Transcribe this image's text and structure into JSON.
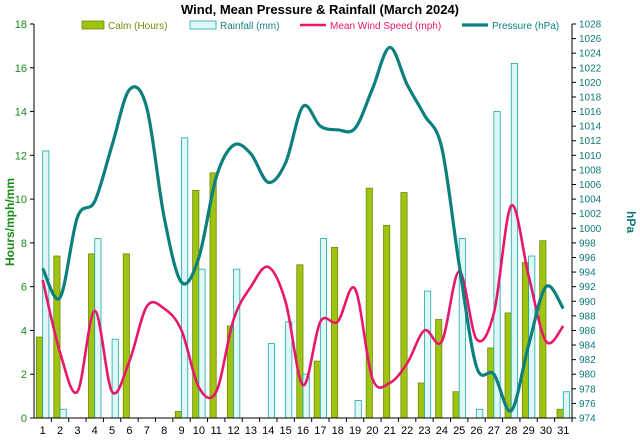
{
  "chart_data": {
    "type": "bar",
    "title": "Wind, Mean Pressure & Rainfall (March 2024)",
    "ylabel": "Hours/mph/mm",
    "y2label": "hPa",
    "ylim": [
      0,
      18
    ],
    "y2lim": [
      974,
      1028
    ],
    "categories": [
      "1",
      "2",
      "3",
      "4",
      "5",
      "6",
      "7",
      "8",
      "9",
      "10",
      "11",
      "12",
      "13",
      "14",
      "15",
      "16",
      "17",
      "18",
      "19",
      "20",
      "21",
      "22",
      "23",
      "24",
      "25",
      "26",
      "27",
      "28",
      "29",
      "30",
      "31"
    ],
    "series": [
      {
        "name": "Calm (Hours)",
        "kind": "bar",
        "color": "#9ec411",
        "values": [
          3.7,
          7.4,
          0,
          7.5,
          0,
          7.5,
          0,
          0,
          0.3,
          10.4,
          11.2,
          4.2,
          0,
          0,
          0,
          7.0,
          2.6,
          7.8,
          0,
          10.5,
          8.8,
          10.3,
          1.6,
          4.5,
          1.2,
          0,
          3.2,
          4.8,
          7.1,
          8.1,
          0.4
        ]
      },
      {
        "name": "Rainfall (mm)",
        "kind": "bar",
        "color": "#dff7f7",
        "values": [
          12.2,
          0.4,
          0,
          8.2,
          3.6,
          0,
          0,
          0,
          12.8,
          6.8,
          0,
          6.8,
          0,
          3.4,
          4.4,
          2.0,
          8.2,
          0,
          0.8,
          0,
          0,
          0,
          5.8,
          0,
          8.2,
          0.4,
          14.0,
          16.2,
          7.4,
          0,
          1.2
        ]
      },
      {
        "name": "Mean Wind Speed (mph)",
        "kind": "line",
        "axis": "left",
        "color": "#e8176b",
        "values": [
          6.3,
          3.0,
          1.2,
          4.9,
          1.2,
          2.6,
          5.1,
          5.0,
          4.0,
          1.4,
          1.2,
          4.5,
          6.0,
          6.9,
          5.3,
          1.5,
          4.4,
          4.4,
          5.9,
          1.8,
          1.6,
          2.5,
          4.0,
          3.5,
          6.7,
          3.6,
          4.8,
          9.7,
          6.5,
          3.5,
          4.2
        ]
      },
      {
        "name": "Pressure (hPa)",
        "kind": "line",
        "axis": "right",
        "color": "#0d7f7f",
        "values": [
          994.5,
          990.5,
          1001.5,
          1003.7,
          1011.4,
          1019.0,
          1016.5,
          1001.5,
          992.6,
          996.0,
          1007.0,
          1011.4,
          1010.2,
          1006.3,
          1009.0,
          1016.7,
          1014.0,
          1013.5,
          1013.7,
          1019.1,
          1024.8,
          1019.7,
          1015.5,
          1011.0,
          995.0,
          981.0,
          980.0,
          975.0,
          984.0,
          992.0,
          989.0
        ]
      }
    ],
    "grid": false,
    "legend": "top"
  }
}
